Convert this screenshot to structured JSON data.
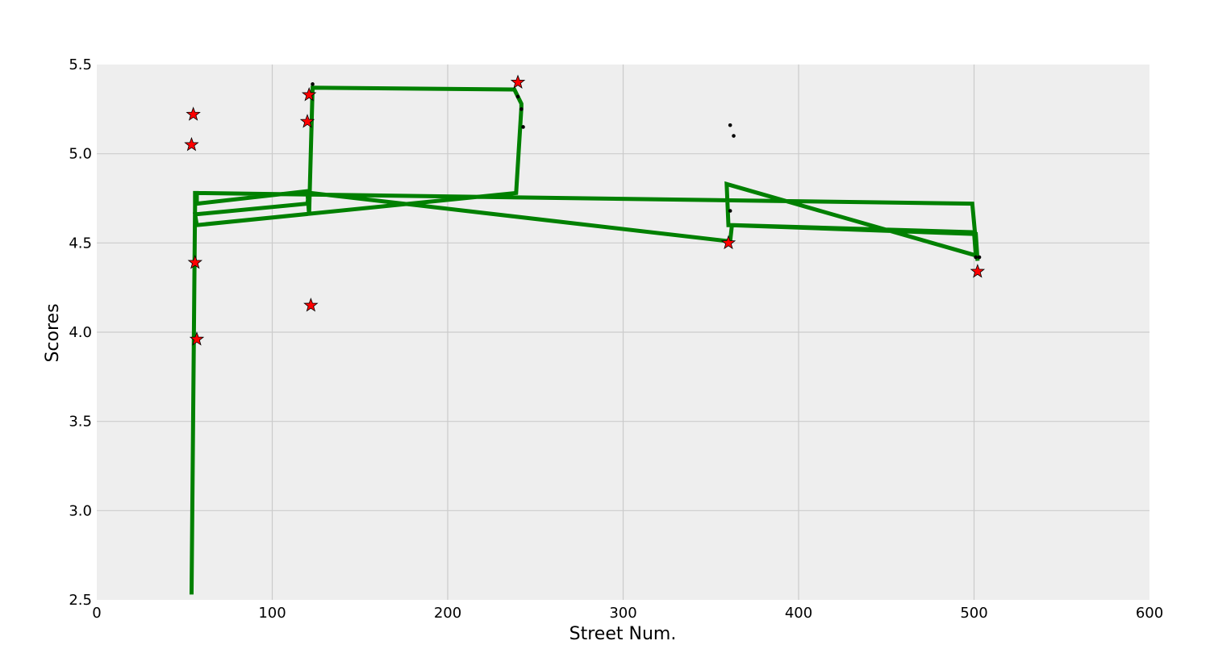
{
  "chart_data": {
    "type": "line",
    "title": "",
    "xlabel": "Street Num.",
    "ylabel": "Scores",
    "xlim": [
      0,
      600
    ],
    "ylim": [
      2.5,
      5.5
    ],
    "xticks": [
      0,
      100,
      200,
      300,
      400,
      500,
      600
    ],
    "yticks": [
      2.5,
      3.0,
      3.5,
      4.0,
      4.5,
      5.0,
      5.5
    ],
    "x_tick_labels": [
      "0",
      "100",
      "200",
      "300",
      "400",
      "500",
      "600"
    ],
    "y_tick_labels": [
      "2.5",
      "3.0",
      "3.5",
      "4.0",
      "4.5",
      "5.0",
      "5.5"
    ],
    "grid": true,
    "background_color": "#eeeeee",
    "grid_color": "#cbcbcb",
    "series": [
      {
        "kind": "line",
        "color": "#008000",
        "x": [
          54,
          56,
          56,
          57,
          57,
          120,
          121,
          121,
          123,
          238,
          240,
          242,
          242,
          239,
          239,
          57,
          56,
          56,
          120,
          120,
          121,
          122,
          360,
          361,
          362,
          362,
          500,
          501,
          501,
          359,
          360,
          361,
          361,
          501,
          502,
          502,
          499,
          56,
          57
        ],
        "y": [
          2.53,
          4.71,
          4.78,
          4.78,
          4.72,
          4.79,
          4.66,
          4.66,
          5.37,
          5.36,
          5.32,
          5.28,
          5.26,
          4.78,
          4.78,
          4.6,
          4.66,
          4.66,
          4.72,
          4.72,
          4.78,
          4.78,
          4.51,
          4.51,
          4.6,
          4.6,
          4.56,
          4.43,
          4.43,
          4.83,
          4.6,
          4.6,
          4.6,
          4.55,
          4.4,
          4.4,
          4.72,
          4.78,
          4.78
        ]
      },
      {
        "kind": "star",
        "color": "#ff0000",
        "x": [
          55,
          54,
          56,
          57,
          121,
          120,
          122,
          240,
          360,
          502
        ],
        "y": [
          5.22,
          5.05,
          4.39,
          3.96,
          5.33,
          5.18,
          4.15,
          5.4,
          4.5,
          4.34
        ]
      },
      {
        "kind": "dot",
        "color": "#000000",
        "x": [
          123,
          240,
          242,
          243,
          361,
          363,
          361,
          501,
          503
        ],
        "y": [
          5.39,
          5.32,
          5.25,
          5.15,
          5.16,
          5.1,
          4.68,
          4.42,
          4.42
        ]
      }
    ]
  }
}
